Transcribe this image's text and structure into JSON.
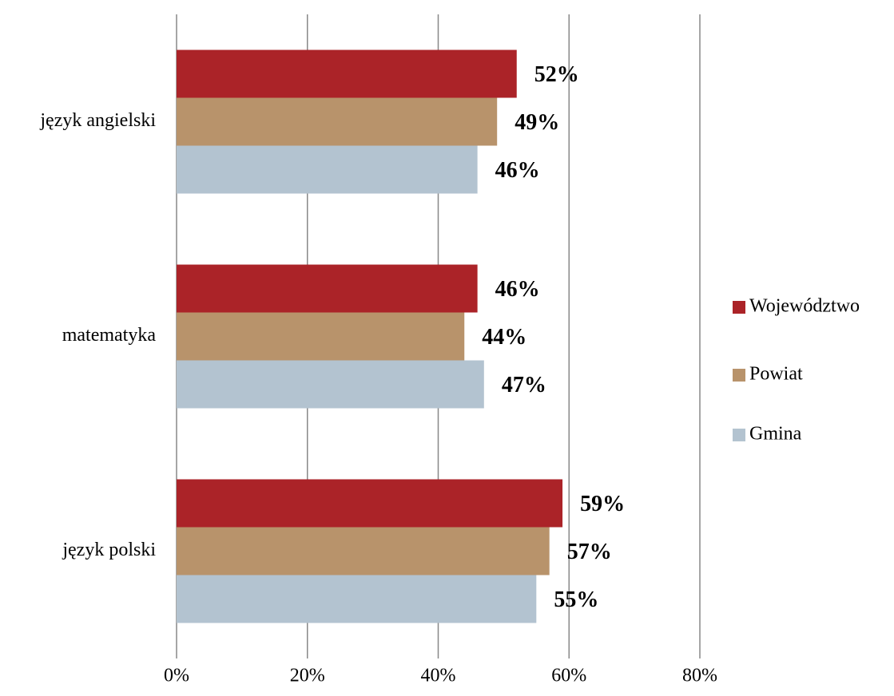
{
  "chart_data": {
    "type": "bar",
    "orientation": "horizontal",
    "categories": [
      "język angielski",
      "matematyka",
      "język polski"
    ],
    "series": [
      {
        "name": "Województwo",
        "color": "#ab2328",
        "values": [
          52,
          46,
          59
        ],
        "value_labels": [
          "52%",
          "46%",
          "59%"
        ]
      },
      {
        "name": "Powiat",
        "color": "#b8936b",
        "values": [
          49,
          44,
          57
        ],
        "value_labels": [
          "49%",
          "44%",
          "57%"
        ]
      },
      {
        "name": "Gmina",
        "color": "#b3c3d0",
        "values": [
          46,
          47,
          55
        ],
        "value_labels": [
          "46%",
          "47%",
          "55%"
        ]
      }
    ],
    "xlim": [
      0,
      80
    ],
    "xticks": [
      {
        "value": 0,
        "label": "0%"
      },
      {
        "value": 20,
        "label": "20%"
      },
      {
        "value": 40,
        "label": "40%"
      },
      {
        "value": 60,
        "label": "60%"
      },
      {
        "value": 80,
        "label": "80%"
      }
    ],
    "grid": true,
    "legend": "right"
  }
}
